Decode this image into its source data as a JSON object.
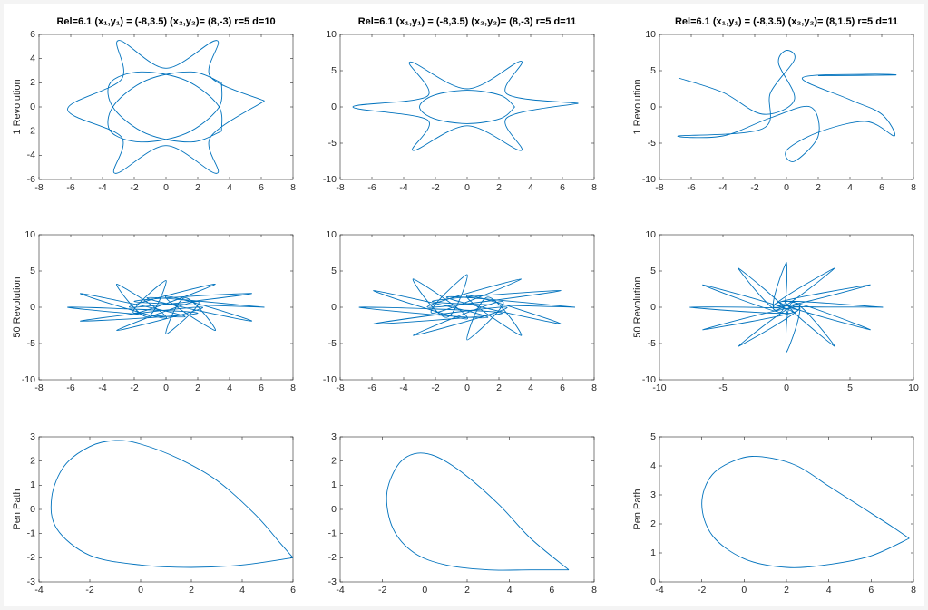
{
  "chart_data": [
    {
      "type": "line",
      "title": "Rel=6.1 (x₁,y₁) = (-8,3.5)  (x₂,y₂)= (8,-3)  r=5 d=10",
      "ylabel": "1 Revolution",
      "xlim": [
        -8,
        8
      ],
      "ylim": [
        -6,
        6
      ],
      "xticks": [
        -8,
        -6,
        -4,
        -2,
        0,
        2,
        4,
        6,
        8
      ],
      "yticks": [
        -6,
        -4,
        -2,
        0,
        2,
        4,
        6
      ],
      "series": [
        {
          "color": "#0072bd",
          "x": [
            6.2,
            2.8,
            3.2,
            0,
            -3,
            -2.8,
            -6.2,
            -2.8,
            -3.2,
            0,
            3.2,
            2.8,
            6.2,
            null,
            3.5,
            1.6,
            -1.25,
            -3.3,
            -3.5,
            -1.6,
            1.25,
            3.3,
            3.5,
            null,
            3.5,
            1.6,
            -1.25,
            -3.3,
            -3.5,
            -1.6,
            1.25,
            3.3,
            3.5
          ],
          "y": [
            0.5,
            2.5,
            5.5,
            3.2,
            5.5,
            2.3,
            -0.2,
            -2.5,
            -5.5,
            -3.2,
            -5.5,
            -2.5,
            0.5,
            null,
            2.0,
            2.9,
            2.2,
            0.1,
            -2.0,
            -2.9,
            -2.2,
            -0.1,
            2.0,
            null,
            -2.0,
            -2.9,
            -2.2,
            -0.1,
            2.0,
            2.9,
            2.2,
            0.1,
            -2.0
          ]
        }
      ]
    },
    {
      "type": "line",
      "title": "Rel=6.1 (x₁,y₁) = (-8,3.5)  (x₂,y₂)= (8,-3)  r=5 d=11",
      "xlim": [
        -8,
        8
      ],
      "ylim": [
        -10,
        10
      ],
      "xticks": [
        -8,
        -6,
        -4,
        -2,
        0,
        2,
        4,
        6,
        8
      ],
      "yticks": [
        -10,
        -5,
        0,
        5,
        10
      ],
      "series": [
        {
          "color": "#0072bd",
          "x": [
            7,
            2.5,
            3.4,
            0,
            -3.6,
            -2.5,
            -7.2,
            -2.5,
            -3.4,
            0,
            3.4,
            2.5,
            7,
            null,
            3,
            2.1,
            0,
            -2.1,
            -3,
            -2.1,
            0,
            2.1,
            3
          ],
          "y": [
            0.5,
            1.8,
            6.3,
            2.5,
            6.2,
            1.5,
            0,
            -1.8,
            -6,
            -2.6,
            -6,
            -1.5,
            0.5,
            null,
            0,
            1.6,
            2.3,
            1.6,
            0,
            -1.6,
            -2.3,
            -1.6,
            0
          ]
        }
      ]
    },
    {
      "type": "line",
      "title": "Rel=6.1 (x₁,y₁) = (-8,3.5)  (x₂,y₂)= (8,1.5)  r=5 d=11",
      "ylabel": "1 Revolution",
      "xlim": [
        -8,
        8
      ],
      "ylim": [
        -10,
        10
      ],
      "xticks": [
        -8,
        -6,
        -4,
        -2,
        0,
        2,
        4,
        6,
        8
      ],
      "yticks": [
        -10,
        -5,
        0,
        5,
        10
      ],
      "series": [
        {
          "color": "#0072bd",
          "x": [
            -6.8,
            -4,
            -1.5,
            0.5,
            -0.5,
            0,
            0.5,
            -1,
            -1.5,
            -6.8,
            -4,
            -1,
            1.5,
            2,
            0.5,
            0,
            2,
            5,
            6.8,
            6,
            4,
            1,
            5,
            6.8,
            2
          ],
          "y": [
            4,
            2,
            -1,
            1,
            6,
            7.8,
            6.5,
            2,
            -3,
            -4,
            -4,
            -1.5,
            0,
            -4,
            -7.5,
            -6,
            -3.5,
            -2,
            -4,
            -1,
            1,
            4,
            4.5,
            4.4,
            4.3
          ]
        }
      ]
    },
    {
      "type": "line",
      "ylabel": "50 Revolution",
      "xlim": [
        -8,
        8
      ],
      "ylim": [
        -10,
        10
      ],
      "xticks": [
        -8,
        -6,
        -4,
        -2,
        0,
        2,
        4,
        6,
        8
      ],
      "yticks": [
        -10,
        -5,
        0,
        5,
        10
      ],
      "series": [
        {
          "color": "#0072bd",
          "x": [
            6.2,
            -2.0,
            5.4,
            -2.3,
            3.1,
            -2.0,
            0,
            -1.2,
            -3.1,
            0,
            -5.4,
            1.2,
            -6.2,
            2.0,
            -5.4,
            2.3,
            -3.1,
            2.0,
            0,
            1.2,
            3.1,
            0,
            5.4,
            -1.2,
            6.2
          ],
          "y": [
            0,
            0.8,
            1.9,
            0,
            3.2,
            -0.8,
            3.7,
            -1.3,
            3.2,
            -1.5,
            1.9,
            -1.3,
            0,
            -0.8,
            -1.9,
            0,
            -3.2,
            0.8,
            -3.7,
            1.3,
            -3.2,
            1.5,
            -1.9,
            1.3,
            0
          ]
        }
      ]
    },
    {
      "type": "line",
      "xlim": [
        -8,
        8
      ],
      "ylim": [
        -10,
        10
      ],
      "xticks": [
        -8,
        -6,
        -4,
        -2,
        0,
        2,
        4,
        6,
        8
      ],
      "yticks": [
        -10,
        -5,
        0,
        5,
        10
      ],
      "series": [
        {
          "color": "#0072bd",
          "x": [
            6.8,
            -2.2,
            5.9,
            -2.5,
            3.4,
            -2.2,
            0,
            -1.3,
            -3.4,
            0,
            -5.9,
            1.3,
            -6.8,
            2.2,
            -5.9,
            2.5,
            -3.4,
            2.2,
            0,
            1.3,
            3.4,
            0,
            5.9,
            -1.3,
            6.8
          ],
          "y": [
            0,
            0.8,
            2.3,
            0,
            3.9,
            -0.8,
            4.5,
            -1.4,
            3.9,
            -1.6,
            2.3,
            -1.4,
            0,
            -0.8,
            -2.3,
            0,
            -3.9,
            0.8,
            -4.5,
            1.4,
            -3.9,
            1.6,
            -2.3,
            1.4,
            0
          ]
        }
      ]
    },
    {
      "type": "line",
      "ylabel": "50 Revolution",
      "xlim": [
        -10,
        10
      ],
      "ylim": [
        -10,
        10
      ],
      "xticks": [
        -10,
        -5,
        0,
        5,
        10
      ],
      "yticks": [
        -10,
        -5,
        0,
        5,
        10
      ],
      "series": [
        {
          "color": "#0072bd",
          "x": [
            7.6,
            -0.9,
            6.6,
            -1,
            3.8,
            -0.9,
            0,
            -0.5,
            -3.8,
            0,
            -6.6,
            0.5,
            -7.6,
            0.9,
            -6.6,
            1,
            -3.8,
            0.9,
            0,
            0.5,
            3.8,
            0,
            6.6,
            -0.5,
            7.6
          ],
          "y": [
            0,
            0.4,
            3.1,
            0,
            5.4,
            -0.4,
            6.2,
            -0.7,
            5.4,
            -0.8,
            3.1,
            -0.7,
            0,
            -0.4,
            -3.1,
            0,
            -5.4,
            0.4,
            -6.2,
            0.7,
            -5.4,
            0.8,
            -3.1,
            0.7,
            0
          ]
        }
      ]
    },
    {
      "type": "line",
      "ylabel": "Pen Path",
      "xlim": [
        -4,
        6
      ],
      "ylim": [
        -3,
        3
      ],
      "xticks": [
        -4,
        -2,
        0,
        2,
        4,
        6
      ],
      "yticks": [
        -3,
        -2,
        -1,
        0,
        1,
        2,
        3
      ],
      "series": [
        {
          "color": "#0072bd",
          "x": [
            6,
            4,
            2,
            0,
            -2,
            -3.3,
            -3.5,
            -3,
            -2,
            -1,
            0,
            1.5,
            3,
            4.5,
            5.5,
            6
          ],
          "y": [
            -2,
            -2.3,
            -2.4,
            -2.3,
            -1.9,
            -0.8,
            0.5,
            1.8,
            2.6,
            2.85,
            2.7,
            2.1,
            1.2,
            -0.2,
            -1.4,
            -2
          ]
        }
      ]
    },
    {
      "type": "line",
      "xlim": [
        -4,
        8
      ],
      "ylim": [
        -3,
        3
      ],
      "xticks": [
        -4,
        -2,
        0,
        2,
        4,
        6,
        8
      ],
      "yticks": [
        -3,
        -2,
        -1,
        0,
        1,
        2,
        3
      ],
      "series": [
        {
          "color": "#0072bd",
          "x": [
            6.8,
            5,
            3,
            1,
            -0.5,
            -1.5,
            -1.8,
            -1.3,
            -0.5,
            0.5,
            1.8,
            3.5,
            5,
            6.8
          ],
          "y": [
            -2.5,
            -2.5,
            -2.5,
            -2.3,
            -1.8,
            -0.8,
            0.6,
            1.8,
            2.3,
            2.2,
            1.5,
            0.2,
            -1.2,
            -2.5
          ]
        }
      ]
    },
    {
      "type": "line",
      "ylabel": "Pen Path",
      "xlim": [
        -4,
        8
      ],
      "ylim": [
        0,
        5
      ],
      "xticks": [
        -4,
        -2,
        0,
        2,
        4,
        6,
        8
      ],
      "yticks": [
        0,
        1,
        2,
        3,
        4,
        5
      ],
      "series": [
        {
          "color": "#0072bd",
          "x": [
            7.8,
            6,
            4,
            2,
            0,
            -1.5,
            -2,
            -1.5,
            -0.2,
            1,
            2.5,
            4,
            5.5,
            7,
            7.8
          ],
          "y": [
            1.5,
            0.9,
            0.6,
            0.5,
            0.8,
            1.6,
            2.7,
            3.7,
            4.25,
            4.3,
            4,
            3.3,
            2.6,
            1.9,
            1.5
          ]
        }
      ]
    }
  ]
}
